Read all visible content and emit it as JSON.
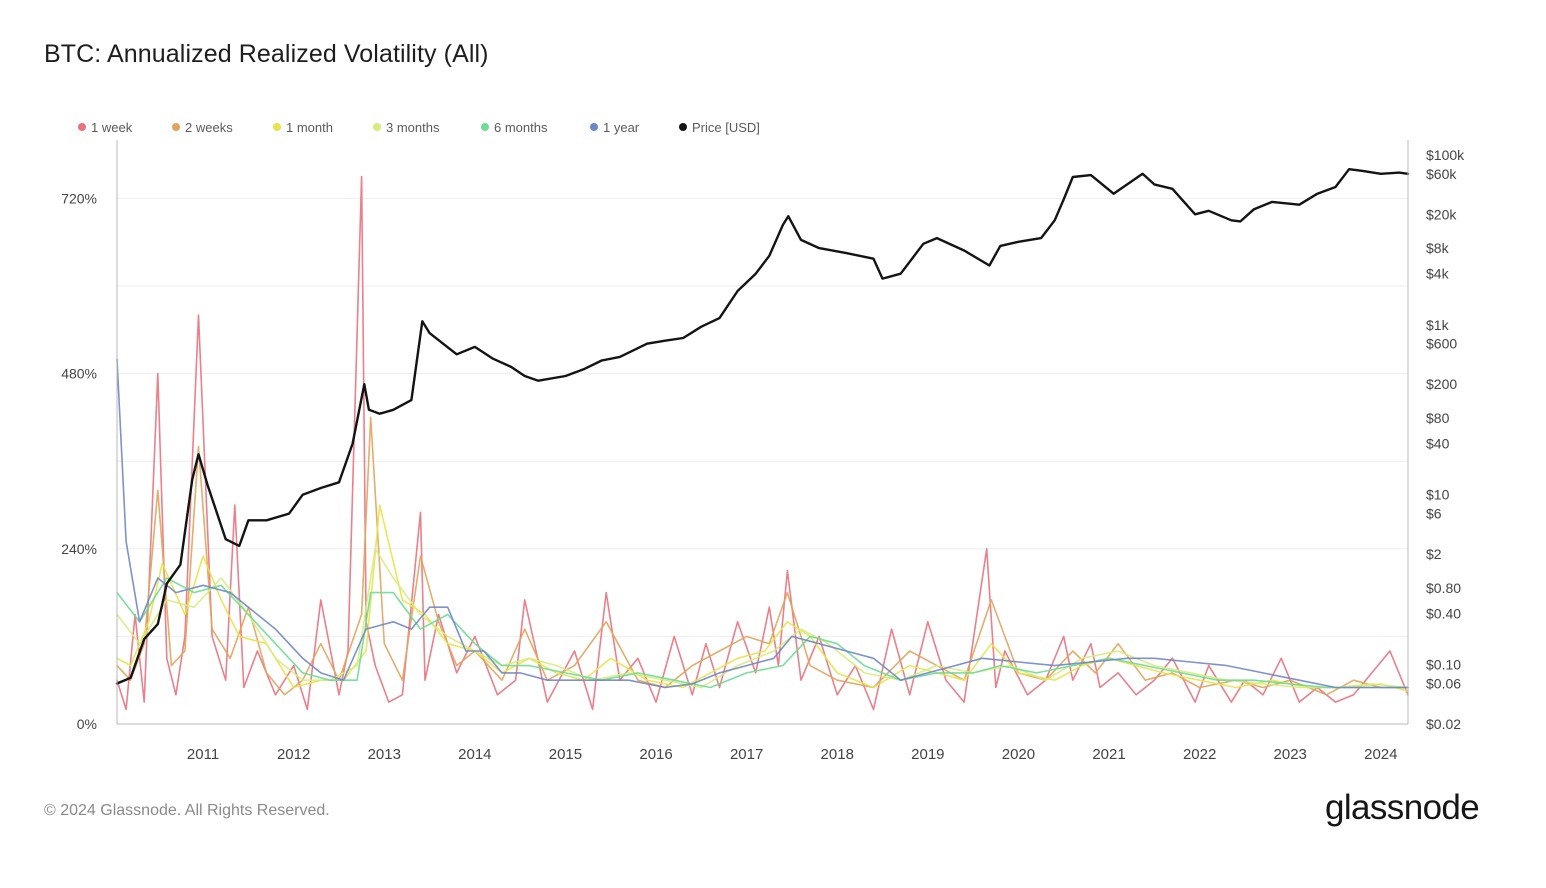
{
  "title": "BTC: Annualized Realized Volatility (All)",
  "footer": {
    "copyright": "© 2024 Glassnode. All Rights Reserved.",
    "brand": "glassnode"
  },
  "legend": [
    {
      "label": "1 week",
      "color": "#e8727e"
    },
    {
      "label": "2 weeks",
      "color": "#e0a45c"
    },
    {
      "label": "1 month",
      "color": "#e6e44a"
    },
    {
      "label": "3 months",
      "color": "#d8eb7c"
    },
    {
      "label": "6 months",
      "color": "#6ddc93"
    },
    {
      "label": "1 year",
      "color": "#6f86c9"
    },
    {
      "label": "Price [USD]",
      "color": "#141414"
    }
  ],
  "chart_data": {
    "type": "line",
    "title": "BTC: Annualized Realized Volatility (All)",
    "x_tick_labels": [
      "2011",
      "2012",
      "2013",
      "2014",
      "2015",
      "2016",
      "2017",
      "2018",
      "2019",
      "2020",
      "2021",
      "2022",
      "2023",
      "2024"
    ],
    "x_range": [
      2010.55,
      2024.8
    ],
    "y_left": {
      "tick_labels": [
        "0%",
        "240%",
        "480%",
        "720%"
      ],
      "ticks": [
        0,
        240,
        480,
        720
      ],
      "range": [
        0,
        800
      ]
    },
    "y_right": {
      "scale": "log",
      "tick_labels": [
        "$100k",
        "$60k",
        "$20k",
        "$8k",
        "$4k",
        "$1k",
        "$600",
        "$200",
        "$80",
        "$40",
        "$10",
        "$6",
        "$2",
        "$0.80",
        "$0.40",
        "$0.10",
        "$0.06",
        "$0.02"
      ],
      "ticks": [
        100000,
        60000,
        20000,
        8000,
        4000,
        1000,
        600,
        200,
        80,
        40,
        10,
        6,
        2,
        0.8,
        0.4,
        0.1,
        0.06,
        0.02
      ],
      "range": [
        0.02,
        150000
      ]
    },
    "grid": true,
    "legend_position": "top-left",
    "series": [
      {
        "name": "1 week",
        "color": "#e8727e",
        "axis": "left",
        "x": [
          2010.55,
          2010.65,
          2010.75,
          2010.85,
          2011.0,
          2011.1,
          2011.2,
          2011.3,
          2011.45,
          2011.6,
          2011.75,
          2011.85,
          2011.95,
          2012.1,
          2012.3,
          2012.5,
          2012.65,
          2012.8,
          2013.0,
          2013.1,
          2013.25,
          2013.3,
          2013.4,
          2013.55,
          2013.7,
          2013.9,
          2013.95,
          2014.1,
          2014.3,
          2014.5,
          2014.75,
          2014.95,
          2015.05,
          2015.3,
          2015.6,
          2015.8,
          2015.95,
          2016.1,
          2016.3,
          2016.5,
          2016.7,
          2016.9,
          2017.05,
          2017.2,
          2017.4,
          2017.6,
          2017.75,
          2017.85,
          2017.95,
          2018.1,
          2018.3,
          2018.5,
          2018.7,
          2018.9,
          2019.1,
          2019.3,
          2019.5,
          2019.7,
          2019.9,
          2020.15,
          2020.25,
          2020.35,
          2020.6,
          2020.8,
          2021.0,
          2021.1,
          2021.3,
          2021.4,
          2021.6,
          2021.8,
          2022.0,
          2022.2,
          2022.45,
          2022.6,
          2022.85,
          2023.0,
          2023.2,
          2023.4,
          2023.6,
          2023.8,
          2024.0,
          2024.2,
          2024.4,
          2024.6,
          2024.8
        ],
        "values": [
          60,
          20,
          150,
          30,
          480,
          90,
          40,
          120,
          560,
          120,
          60,
          300,
          50,
          100,
          40,
          80,
          20,
          170,
          40,
          100,
          750,
          140,
          80,
          30,
          40,
          290,
          60,
          150,
          70,
          120,
          40,
          60,
          170,
          30,
          100,
          20,
          180,
          60,
          90,
          30,
          120,
          40,
          110,
          50,
          140,
          70,
          160,
          80,
          210,
          60,
          120,
          40,
          80,
          20,
          130,
          40,
          140,
          60,
          30,
          240,
          50,
          100,
          40,
          60,
          120,
          60,
          110,
          50,
          70,
          40,
          60,
          90,
          30,
          80,
          30,
          60,
          40,
          90,
          30,
          50,
          30,
          40,
          70,
          100,
          40
        ]
      },
      {
        "name": "2 weeks",
        "color": "#e0a45c",
        "axis": "left",
        "x": [
          2010.55,
          2010.7,
          2010.85,
          2011.0,
          2011.15,
          2011.3,
          2011.45,
          2011.6,
          2011.8,
          2012.0,
          2012.2,
          2012.4,
          2012.6,
          2012.8,
          2013.0,
          2013.25,
          2013.35,
          2013.5,
          2013.7,
          2013.9,
          2014.1,
          2014.3,
          2014.5,
          2014.8,
          2015.05,
          2015.3,
          2015.6,
          2015.95,
          2016.3,
          2016.6,
          2016.9,
          2017.2,
          2017.5,
          2017.75,
          2017.95,
          2018.2,
          2018.5,
          2018.9,
          2019.3,
          2019.6,
          2019.9,
          2020.2,
          2020.5,
          2020.8,
          2021.1,
          2021.35,
          2021.6,
          2021.9,
          2022.2,
          2022.5,
          2022.9,
          2023.2,
          2023.5,
          2023.9,
          2024.2,
          2024.5,
          2024.8
        ],
        "values": [
          80,
          60,
          110,
          320,
          80,
          100,
          380,
          130,
          90,
          160,
          70,
          40,
          60,
          110,
          60,
          150,
          420,
          110,
          60,
          230,
          140,
          80,
          100,
          60,
          130,
          60,
          80,
          140,
          60,
          50,
          80,
          100,
          120,
          110,
          180,
          80,
          60,
          50,
          100,
          80,
          60,
          170,
          70,
          60,
          100,
          70,
          110,
          60,
          70,
          50,
          60,
          50,
          60,
          40,
          60,
          50,
          50
        ]
      },
      {
        "name": "1 month",
        "color": "#e6e44a",
        "axis": "left",
        "x": [
          2010.55,
          2010.7,
          2010.9,
          2011.05,
          2011.3,
          2011.5,
          2011.7,
          2011.9,
          2012.2,
          2012.5,
          2012.8,
          2013.05,
          2013.3,
          2013.45,
          2013.7,
          2013.95,
          2014.2,
          2014.5,
          2014.8,
          2015.1,
          2015.4,
          2015.7,
          2016.0,
          2016.4,
          2016.8,
          2017.1,
          2017.4,
          2017.7,
          2017.95,
          2018.2,
          2018.5,
          2018.9,
          2019.3,
          2019.6,
          2019.9,
          2020.2,
          2020.5,
          2020.9,
          2021.2,
          2021.5,
          2021.8,
          2022.1,
          2022.5,
          2022.9,
          2023.3,
          2023.7,
          2024.1,
          2024.5,
          2024.8
        ],
        "values": [
          90,
          80,
          140,
          220,
          150,
          230,
          170,
          120,
          110,
          50,
          60,
          60,
          100,
          300,
          170,
          150,
          110,
          100,
          70,
          90,
          70,
          60,
          90,
          60,
          50,
          70,
          90,
          100,
          140,
          120,
          70,
          50,
          80,
          70,
          60,
          110,
          70,
          60,
          80,
          90,
          80,
          70,
          60,
          50,
          60,
          50,
          50,
          55,
          45
        ]
      },
      {
        "name": "3 months",
        "color": "#d8eb7c",
        "axis": "left",
        "x": [
          2010.55,
          2010.8,
          2011.1,
          2011.4,
          2011.7,
          2012.0,
          2012.3,
          2012.6,
          2012.9,
          2013.2,
          2013.4,
          2013.6,
          2013.9,
          2014.2,
          2014.5,
          2014.8,
          2015.1,
          2015.4,
          2015.8,
          2016.2,
          2016.6,
          2017.0,
          2017.4,
          2017.8,
          2018.1,
          2018.4,
          2018.8,
          2019.2,
          2019.6,
          2020.0,
          2020.4,
          2020.8,
          2021.2,
          2021.6,
          2022.0,
          2022.4,
          2022.8,
          2023.2,
          2023.6,
          2024.0,
          2024.4,
          2024.8
        ],
        "values": [
          150,
          110,
          170,
          160,
          200,
          150,
          90,
          60,
          60,
          80,
          240,
          200,
          150,
          120,
          100,
          80,
          90,
          80,
          60,
          70,
          60,
          50,
          80,
          100,
          130,
          110,
          70,
          60,
          80,
          70,
          80,
          60,
          90,
          100,
          80,
          70,
          60,
          55,
          50,
          50,
          55,
          50
        ]
      },
      {
        "name": "6 months",
        "color": "#6ddc93",
        "axis": "left",
        "x": [
          2010.55,
          2010.8,
          2011.1,
          2011.4,
          2011.7,
          2012.0,
          2012.3,
          2012.6,
          2012.9,
          2013.2,
          2013.35,
          2013.6,
          2013.9,
          2014.2,
          2014.5,
          2014.8,
          2015.1,
          2015.5,
          2015.9,
          2016.3,
          2016.7,
          2017.1,
          2017.5,
          2017.9,
          2018.2,
          2018.5,
          2018.8,
          2019.2,
          2019.6,
          2020.0,
          2020.3,
          2020.7,
          2021.1,
          2021.5,
          2021.9,
          2022.3,
          2022.7,
          2023.1,
          2023.5,
          2023.9,
          2024.3,
          2024.8
        ],
        "values": [
          180,
          140,
          200,
          180,
          190,
          150,
          110,
          70,
          60,
          60,
          180,
          180,
          130,
          150,
          110,
          80,
          80,
          70,
          60,
          70,
          60,
          50,
          70,
          80,
          120,
          110,
          80,
          60,
          70,
          70,
          80,
          70,
          80,
          90,
          80,
          70,
          60,
          60,
          55,
          50,
          50,
          50
        ]
      },
      {
        "name": "1 year",
        "color": "#6f86c9",
        "axis": "left",
        "x": [
          2010.55,
          2010.65,
          2010.8,
          2011.0,
          2011.2,
          2011.5,
          2011.8,
          2012.0,
          2012.3,
          2012.6,
          2012.8,
          2013.05,
          2013.3,
          2013.6,
          2013.8,
          2014.0,
          2014.2,
          2014.4,
          2014.6,
          2014.8,
          2015.0,
          2015.3,
          2015.6,
          2015.9,
          2016.2,
          2016.6,
          2016.9,
          2017.2,
          2017.5,
          2017.8,
          2018.0,
          2018.3,
          2018.6,
          2018.9,
          2019.2,
          2019.5,
          2019.8,
          2020.1,
          2020.5,
          2020.9,
          2021.3,
          2021.7,
          2022.0,
          2022.4,
          2022.8,
          2023.2,
          2023.6,
          2024.0,
          2024.4,
          2024.8
        ],
        "values": [
          500,
          250,
          140,
          200,
          180,
          190,
          180,
          160,
          130,
          90,
          70,
          60,
          130,
          140,
          130,
          160,
          160,
          100,
          100,
          70,
          70,
          60,
          60,
          60,
          60,
          50,
          55,
          70,
          80,
          90,
          120,
          110,
          100,
          90,
          60,
          70,
          80,
          90,
          85,
          80,
          85,
          90,
          90,
          85,
          80,
          70,
          60,
          50,
          50,
          50
        ]
      },
      {
        "name": "Price [USD]",
        "color": "#141414",
        "axis": "right",
        "x": [
          2010.55,
          2010.7,
          2010.85,
          2011.0,
          2011.1,
          2011.25,
          2011.38,
          2011.45,
          2011.55,
          2011.75,
          2011.9,
          2012.0,
          2012.2,
          2012.45,
          2012.6,
          2012.8,
          2013.0,
          2013.15,
          2013.28,
          2013.33,
          2013.45,
          2013.6,
          2013.8,
          2013.92,
          2014.0,
          2014.15,
          2014.3,
          2014.5,
          2014.7,
          2014.9,
          2015.05,
          2015.2,
          2015.5,
          2015.7,
          2015.9,
          2016.1,
          2016.4,
          2016.6,
          2016.8,
          2017.0,
          2017.2,
          2017.4,
          2017.6,
          2017.75,
          2017.9,
          2017.96,
          2018.1,
          2018.3,
          2018.6,
          2018.9,
          2019.0,
          2019.2,
          2019.45,
          2019.6,
          2019.9,
          2020.18,
          2020.3,
          2020.5,
          2020.75,
          2020.9,
          2021.0,
          2021.1,
          2021.3,
          2021.55,
          2021.7,
          2021.87,
          2022.0,
          2022.2,
          2022.45,
          2022.6,
          2022.85,
          2022.95,
          2023.1,
          2023.3,
          2023.6,
          2023.8,
          2024.0,
          2024.15,
          2024.3,
          2024.5,
          2024.7,
          2024.8
        ],
        "values": [
          0.06,
          0.07,
          0.2,
          0.3,
          0.9,
          1.5,
          15,
          30,
          13,
          3,
          2.5,
          5,
          5,
          6,
          10,
          12,
          14,
          40,
          200,
          100,
          90,
          100,
          130,
          1100,
          800,
          600,
          450,
          550,
          400,
          320,
          250,
          220,
          250,
          300,
          380,
          420,
          600,
          650,
          700,
          950,
          1200,
          2500,
          4000,
          6500,
          15000,
          19000,
          10000,
          8000,
          7000,
          6000,
          3500,
          4000,
          9000,
          10500,
          7500,
          5000,
          8500,
          9500,
          10500,
          17000,
          30000,
          55000,
          58000,
          35000,
          45000,
          60000,
          45000,
          40000,
          20000,
          22000,
          17000,
          16500,
          23000,
          28000,
          26000,
          35000,
          42000,
          68000,
          65000,
          60000,
          62000,
          60000
        ]
      }
    ]
  }
}
